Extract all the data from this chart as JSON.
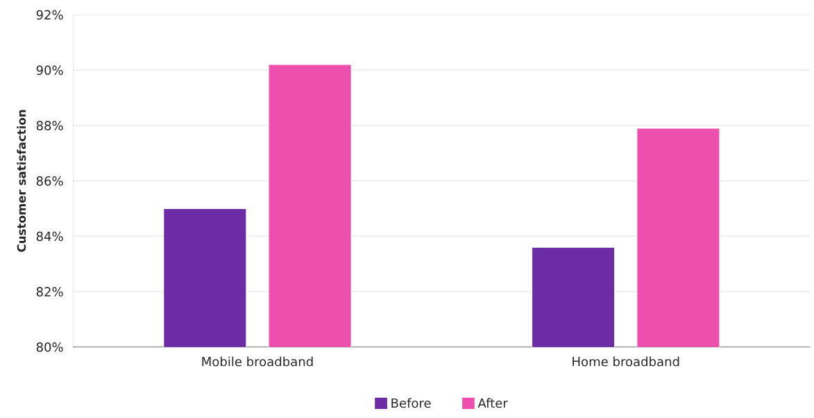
{
  "chart_data": {
    "type": "bar",
    "ylabel": "Customer satisfaction",
    "categories": [
      "Mobile broadband",
      "Home broadband"
    ],
    "series": [
      {
        "name": "Before",
        "color": "#6b2ca5",
        "values": [
          85.0,
          83.6
        ]
      },
      {
        "name": "After",
        "color": "#ec4fac",
        "values": [
          90.2,
          87.9
        ]
      }
    ],
    "ylim": [
      80,
      92
    ],
    "yticks": [
      {
        "value": 80,
        "label": "80%"
      },
      {
        "value": 82,
        "label": "82%"
      },
      {
        "value": 84,
        "label": "84%"
      },
      {
        "value": 86,
        "label": "86%"
      },
      {
        "value": 88,
        "label": "88%"
      },
      {
        "value": 90,
        "label": "90%"
      },
      {
        "value": 92,
        "label": "92%"
      }
    ],
    "grid": "y",
    "legend": "bottom"
  }
}
